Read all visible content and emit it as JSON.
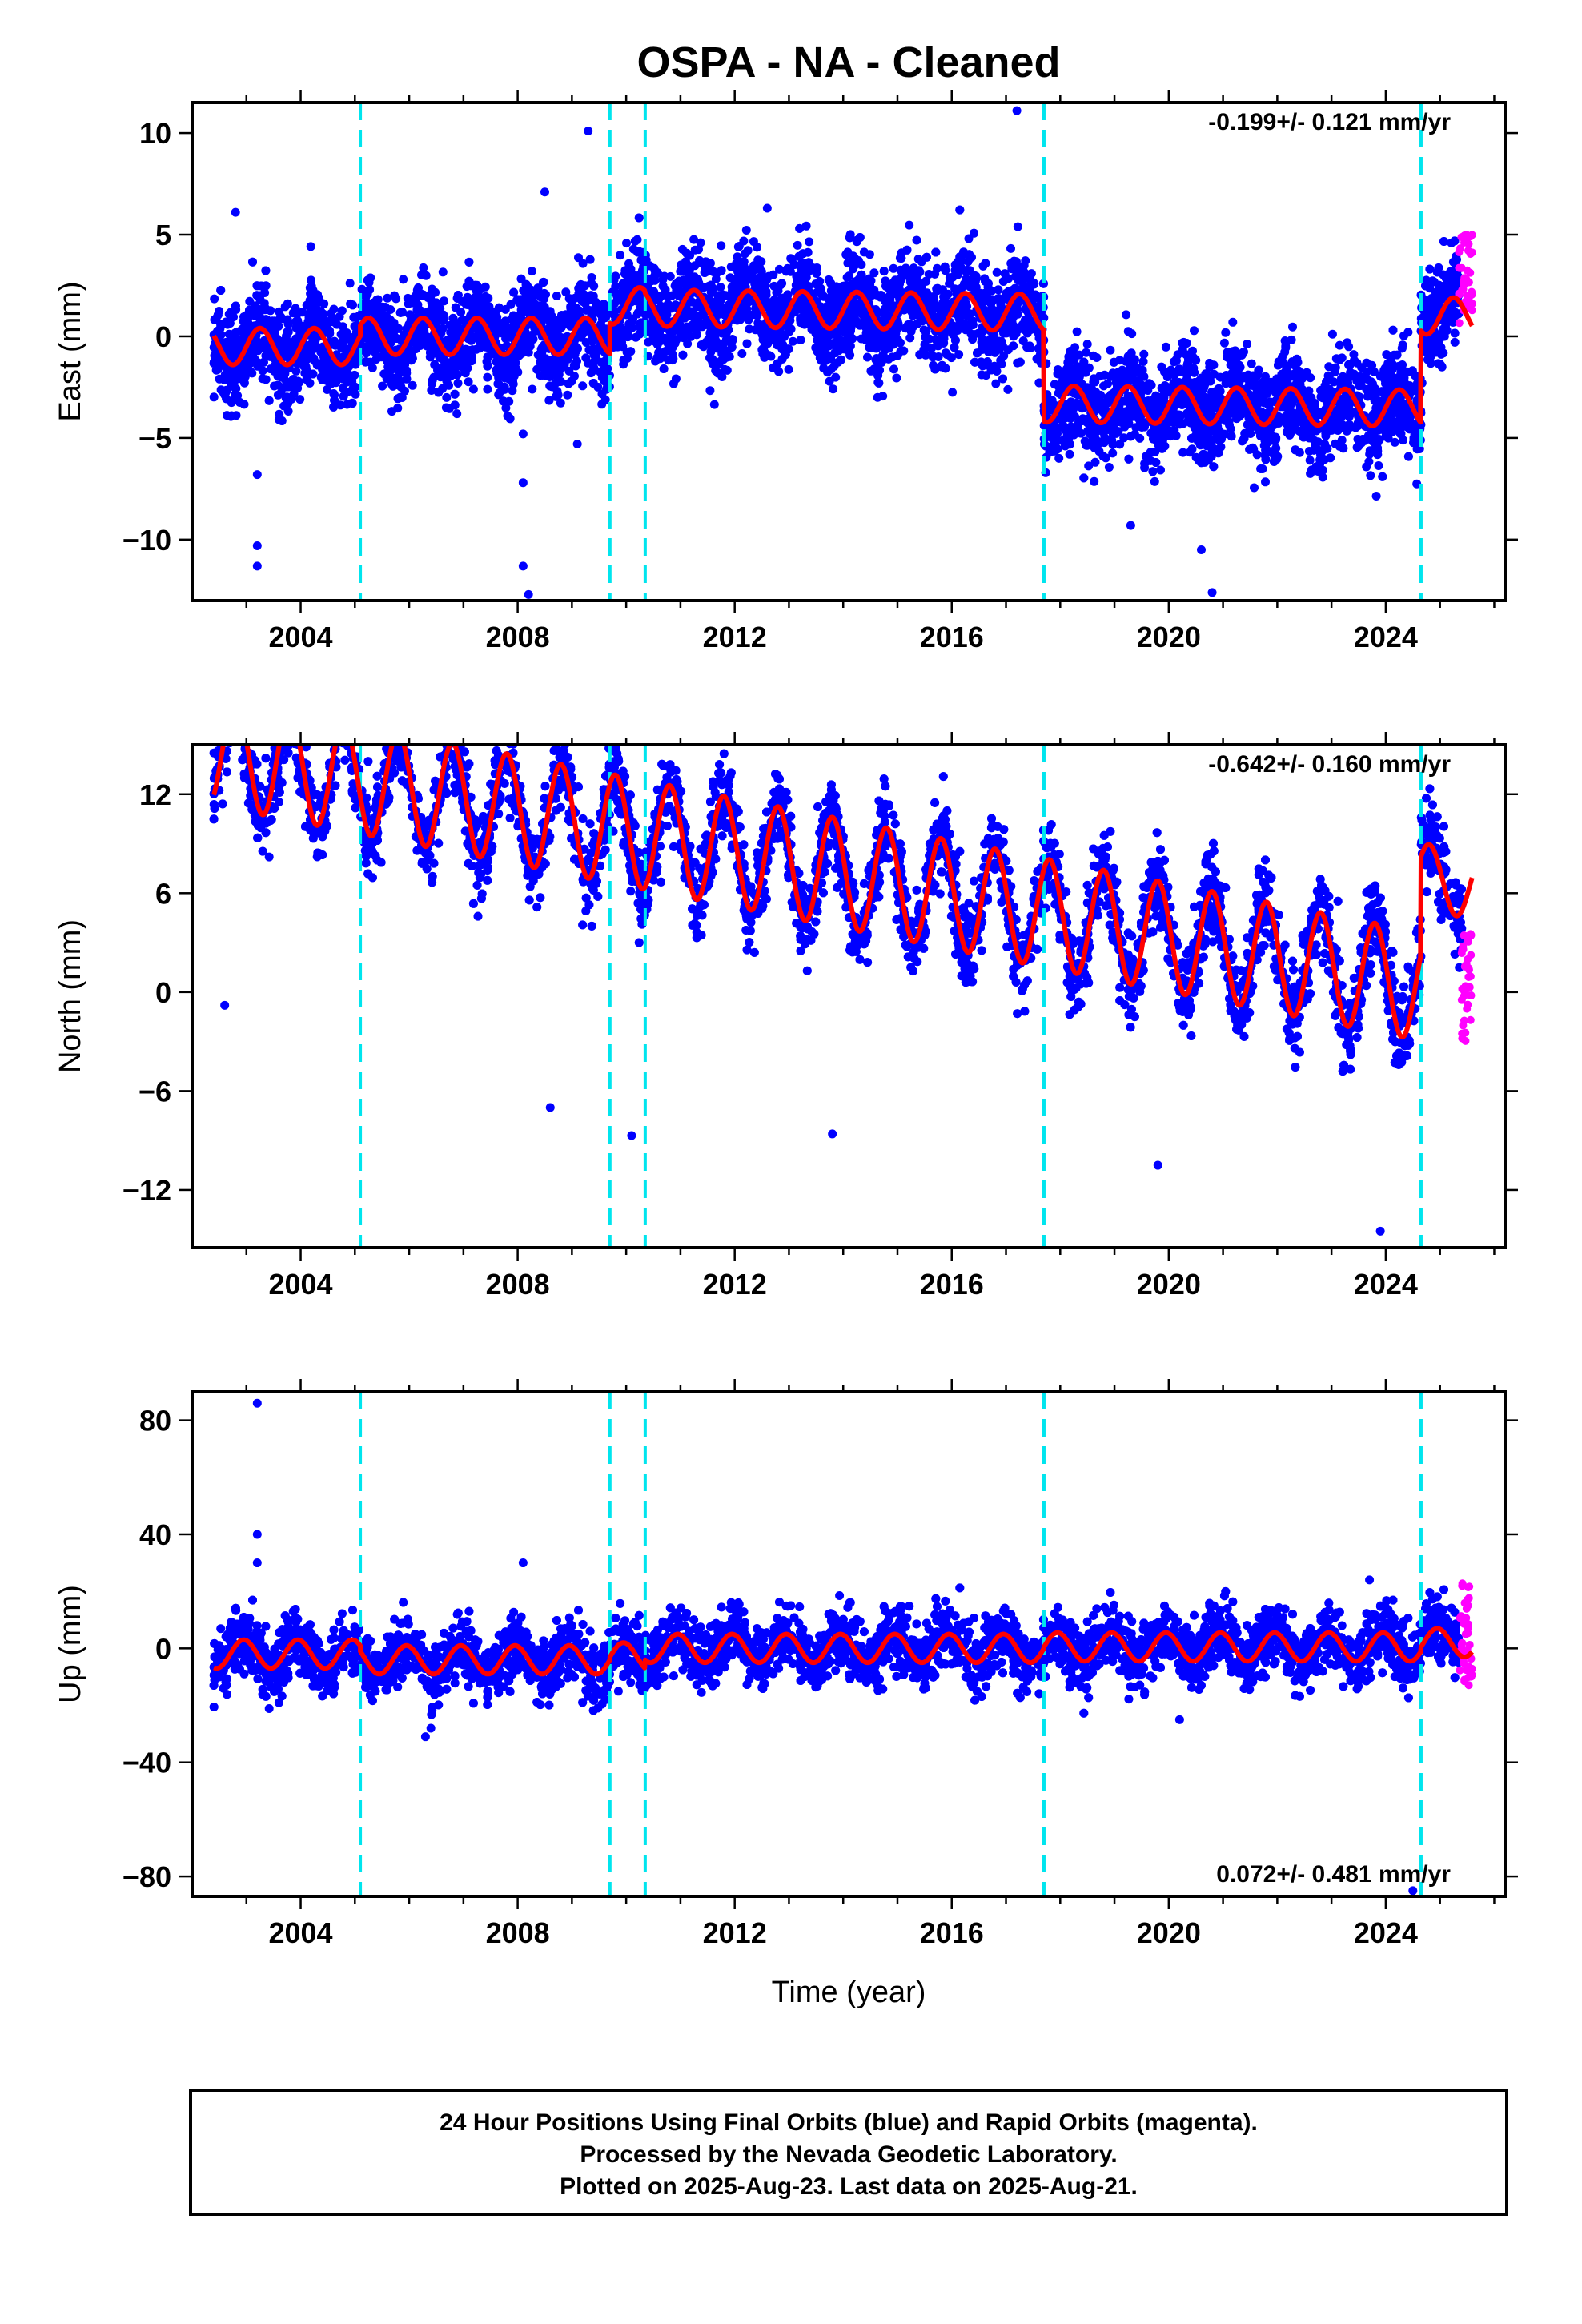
{
  "title": "OSPA  - NA - Cleaned",
  "colors": {
    "final": "#0000ff",
    "rapid": "#ff00ff",
    "model": "#ff0000",
    "offset": "#00e5ee",
    "frame": "#000000"
  },
  "x_axis": {
    "label": "Time (year)",
    "range": [
      2002.0,
      2026.2
    ],
    "ticks": [
      "2004",
      "2008",
      "2012",
      "2016",
      "2020",
      "2024"
    ]
  },
  "offset_epochs": [
    2005.1,
    2009.7,
    2010.35,
    2017.7,
    2024.65
  ],
  "footer": {
    "line1": "24 Hour Positions Using Final Orbits (blue) and Rapid Orbits (magenta).",
    "line2": "Processed by the Nevada Geodetic Laboratory.",
    "line3": "Plotted on 2025-Aug-23. Last data on 2025-Aug-21."
  },
  "chart_data": [
    {
      "type": "scatter",
      "component": "east",
      "ylabel": "East (mm)",
      "ylim": [
        -13,
        11.5
      ],
      "yticks": [
        "10",
        "5",
        "0",
        "−5",
        "−10"
      ],
      "rate_text": "-0.199+/- 0.121 mm/yr",
      "rate_position": "top-right",
      "data_span": [
        2002.4,
        2025.6
      ],
      "model": {
        "name": "model",
        "segments": [
          {
            "start": 2002.4,
            "end": 2005.1,
            "offset": -0.5,
            "trend": 0.0,
            "amp": 0.9,
            "phase": 0.0
          },
          {
            "start": 2005.1,
            "end": 2009.7,
            "offset": 0.0,
            "trend": 0.0,
            "amp": 0.9,
            "phase": 0.0
          },
          {
            "start": 2009.7,
            "end": 2010.35,
            "offset": 1.5,
            "trend": 0.0,
            "amp": 0.9,
            "phase": 0.0
          },
          {
            "start": 2010.35,
            "end": 2017.7,
            "offset": 1.3,
            "trend": -0.03,
            "amp": 0.9,
            "phase": 0.0
          },
          {
            "start": 2017.7,
            "end": 2024.65,
            "offset": -3.2,
            "trend": -0.03,
            "amp": 0.9,
            "phase": 0.0
          },
          {
            "start": 2024.65,
            "end": 2025.6,
            "offset": 1.0,
            "trend": 0.0,
            "amp": 0.9,
            "phase": 0.0
          }
        ]
      },
      "scatter": {
        "noise": 1.2,
        "points_per_year": 300
      },
      "outliers": [
        {
          "x": 2002.8,
          "y": 6.1
        },
        {
          "x": 2003.2,
          "y": -6.8
        },
        {
          "x": 2003.2,
          "y": -10.3
        },
        {
          "x": 2003.2,
          "y": -11.3
        },
        {
          "x": 2008.1,
          "y": -4.8
        },
        {
          "x": 2008.1,
          "y": -7.2
        },
        {
          "x": 2008.1,
          "y": -11.3
        },
        {
          "x": 2008.2,
          "y": -12.7
        },
        {
          "x": 2008.5,
          "y": 7.1
        },
        {
          "x": 2009.1,
          "y": -5.3
        },
        {
          "x": 2009.3,
          "y": 10.1
        },
        {
          "x": 2012.6,
          "y": 6.3
        },
        {
          "x": 2017.2,
          "y": 11.1
        },
        {
          "x": 2020.8,
          "y": -12.6
        },
        {
          "x": 2020.6,
          "y": -10.5
        },
        {
          "x": 2019.3,
          "y": -9.3
        }
      ],
      "rapid": {
        "start": 2025.35,
        "end": 2025.6,
        "center": 2.8,
        "spread": 2.5
      }
    },
    {
      "type": "scatter",
      "component": "north",
      "ylabel": "North (mm)",
      "ylim": [
        -15.5,
        15
      ],
      "yticks": [
        "12",
        "6",
        "0",
        "−6",
        "−12"
      ],
      "rate_text": "-0.642+/- 0.160 mm/yr",
      "rate_position": "top-right",
      "data_span": [
        2002.4,
        2025.6
      ],
      "model": {
        "name": "model",
        "segments": [
          {
            "start": 2002.4,
            "end": 2024.65,
            "offset": 7.5,
            "trend": -0.642,
            "amp": 3.3,
            "phase": 0.45
          },
          {
            "start": 2024.65,
            "end": 2025.6,
            "offset": 14.2,
            "trend": -0.642,
            "amp": 2.0,
            "phase": 0.45
          }
        ]
      },
      "scatter": {
        "noise": 1.3,
        "points_per_year": 300
      },
      "outliers": [
        {
          "x": 2002.4,
          "y": 14.5
        },
        {
          "x": 2003.1,
          "y": 14.4
        },
        {
          "x": 2008.6,
          "y": -7.0
        },
        {
          "x": 2009.6,
          "y": 11.0
        },
        {
          "x": 2009.9,
          "y": 10.8
        },
        {
          "x": 2010.1,
          "y": -8.7
        },
        {
          "x": 2013.8,
          "y": -8.6
        },
        {
          "x": 2019.8,
          "y": -10.5
        },
        {
          "x": 2023.9,
          "y": -14.5
        },
        {
          "x": 2002.6,
          "y": -0.8
        }
      ],
      "rapid": {
        "start": 2025.4,
        "end": 2025.6,
        "center": 0.5,
        "spread": 3.5
      }
    },
    {
      "type": "scatter",
      "component": "up",
      "ylabel": "Up (mm)",
      "ylim": [
        -87,
        90
      ],
      "yticks": [
        "80",
        "40",
        "0",
        "−40",
        "−80"
      ],
      "rate_text": "0.072+/- 0.481 mm/yr",
      "rate_position": "bottom-right",
      "data_span": [
        2002.4,
        2025.6
      ],
      "model": {
        "name": "model",
        "segments": [
          {
            "start": 2002.4,
            "end": 2005.1,
            "offset": -2.0,
            "trend": 0.0,
            "amp": 5.0,
            "phase": 0.3
          },
          {
            "start": 2005.1,
            "end": 2009.7,
            "offset": -4.0,
            "trend": 0.0,
            "amp": 5.0,
            "phase": 0.3
          },
          {
            "start": 2009.7,
            "end": 2010.35,
            "offset": -3.0,
            "trend": 0.0,
            "amp": 5.0,
            "phase": 0.3
          },
          {
            "start": 2010.35,
            "end": 2017.7,
            "offset": 0.0,
            "trend": 0.0,
            "amp": 5.0,
            "phase": 0.3
          },
          {
            "start": 2017.7,
            "end": 2024.65,
            "offset": 0.5,
            "trend": 0.0,
            "amp": 5.0,
            "phase": 0.3
          },
          {
            "start": 2024.65,
            "end": 2025.6,
            "offset": 2.0,
            "trend": 0.0,
            "amp": 5.0,
            "phase": 0.3
          }
        ]
      },
      "scatter": {
        "noise": 5.5,
        "points_per_year": 300
      },
      "outliers": [
        {
          "x": 2003.2,
          "y": 86.0
        },
        {
          "x": 2003.2,
          "y": 40.0
        },
        {
          "x": 2003.2,
          "y": 30.0
        },
        {
          "x": 2008.1,
          "y": 30.0
        },
        {
          "x": 2006.3,
          "y": -31.0
        },
        {
          "x": 2006.4,
          "y": -28.0
        },
        {
          "x": 2020.2,
          "y": -25.0
        },
        {
          "x": 2023.7,
          "y": 24.0
        },
        {
          "x": 2024.5,
          "y": -85.0
        }
      ],
      "rapid": {
        "start": 2025.35,
        "end": 2025.6,
        "center": 5.0,
        "spread": 18.0
      }
    }
  ]
}
